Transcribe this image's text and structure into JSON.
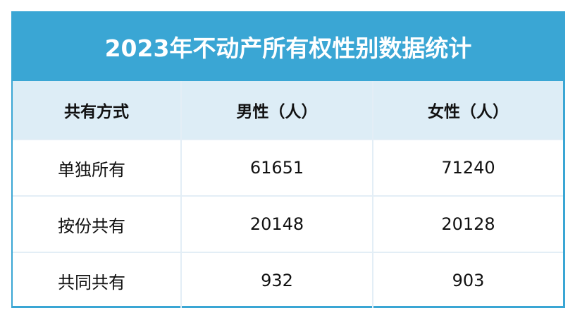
{
  "title": "2023年不动产所有权性别数据统计",
  "colors": {
    "title_bg": "#3aa6d4",
    "header_bg": "#ddedf6",
    "grid": "#e3eef6"
  },
  "chart_data": {
    "type": "table",
    "title": "2023年不动产所有权性别数据统计",
    "columns": [
      "共有方式",
      "男性（人）",
      "女性（人）"
    ],
    "rows": [
      [
        "单独所有",
        "61651",
        "71240"
      ],
      [
        "按份共有",
        "20148",
        "20128"
      ],
      [
        "共同共有",
        "932",
        "903"
      ]
    ]
  }
}
